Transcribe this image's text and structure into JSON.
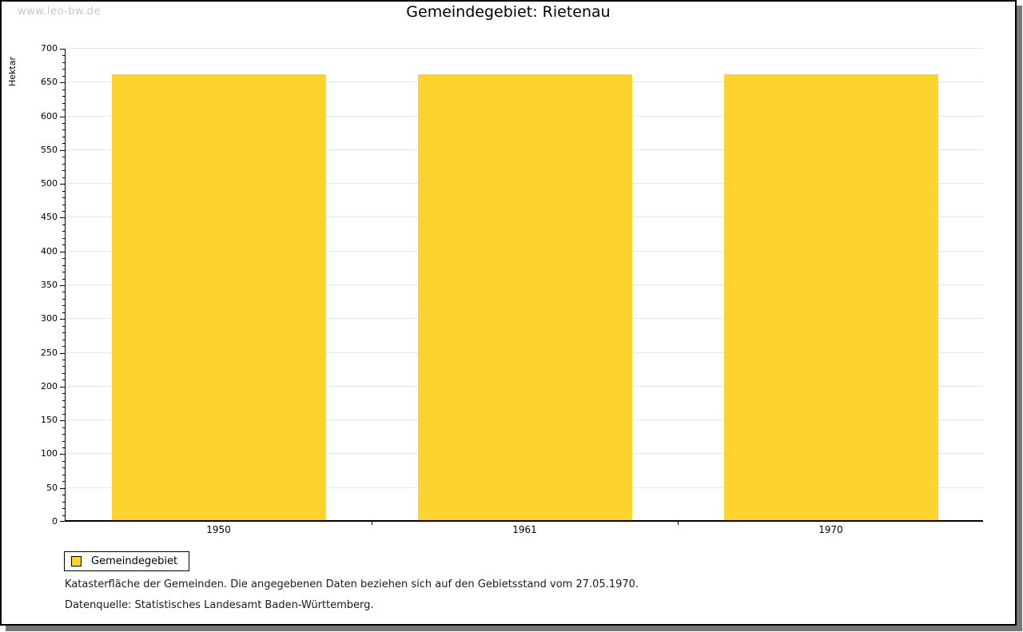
{
  "page": {
    "watermark": "www.leo-bw.de",
    "title": "Gemeindegebiet: Rietenau"
  },
  "chart_data": {
    "type": "bar",
    "categories": [
      "1950",
      "1961",
      "1970"
    ],
    "series": [
      {
        "name": "Gemeindegebiet",
        "values": [
          660,
          660,
          660
        ]
      }
    ],
    "title": "Gemeindegebiet: Rietenau",
    "xlabel": "",
    "ylabel": "Hektar",
    "ylim": [
      0,
      700
    ],
    "ytick_step": 50,
    "minor_tick_step": 10,
    "grid": true,
    "grid_color": "#e6e6e6",
    "bar_color": "#FCD42D",
    "legend_position": "bottom-left"
  },
  "legend": {
    "items": [
      {
        "label": "Gemeindegebiet",
        "color": "#FCD42D"
      }
    ]
  },
  "footnotes": {
    "line1": "Katasterfläche der Gemeinden. Die angegebenen Daten beziehen sich auf den Gebietsstand vom 27.05.1970.",
    "line2": "Datenquelle: Statistisches Landesamt Baden-Württemberg."
  }
}
